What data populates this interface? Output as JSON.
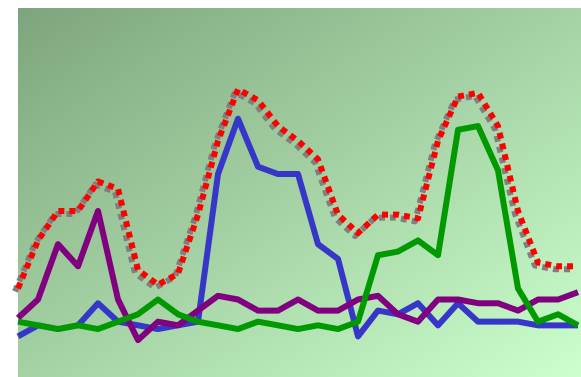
{
  "chart_data": {
    "type": "line",
    "categories": [
      null,
      null,
      null,
      null,
      null,
      null,
      null,
      null,
      null,
      null,
      null,
      null,
      null,
      null,
      null,
      null,
      null,
      null,
      null,
      null,
      null,
      null,
      null,
      null,
      null,
      null,
      null,
      null,
      null
    ],
    "ylim": [
      0,
      100
    ],
    "series": [
      {
        "color": "#ff0000",
        "style": "dotted",
        "shadow": "#7f7f7f",
        "values": [
          24,
          37,
          45,
          45,
          53,
          51,
          29,
          25,
          28,
          44,
          64,
          78,
          75,
          68,
          64,
          59,
          44,
          39,
          44,
          44,
          43,
          64,
          76,
          77,
          68,
          45,
          31,
          30,
          30
        ]
      },
      {
        "color": "#3636c8",
        "values": [
          11,
          14,
          13,
          14,
          20,
          15,
          14,
          13,
          14,
          15,
          55,
          70,
          57,
          55,
          55,
          36,
          32,
          11,
          18,
          17,
          20,
          14,
          20,
          15,
          15,
          15,
          14,
          14,
          14
        ]
      },
      {
        "color": "#800080",
        "values": [
          16,
          21,
          36,
          30,
          45,
          21,
          10,
          15,
          14,
          18,
          22,
          21,
          18,
          18,
          21,
          18,
          18,
          21,
          22,
          17,
          15,
          21,
          21,
          20,
          20,
          18,
          21,
          21,
          23
        ]
      },
      {
        "color": "#009900",
        "values": [
          15,
          14,
          13,
          14,
          13,
          15,
          17,
          21,
          17,
          15,
          14,
          13,
          15,
          14,
          13,
          14,
          13,
          15,
          33,
          34,
          37,
          33,
          67,
          68,
          56,
          24,
          15,
          17,
          14
        ]
      }
    ]
  }
}
